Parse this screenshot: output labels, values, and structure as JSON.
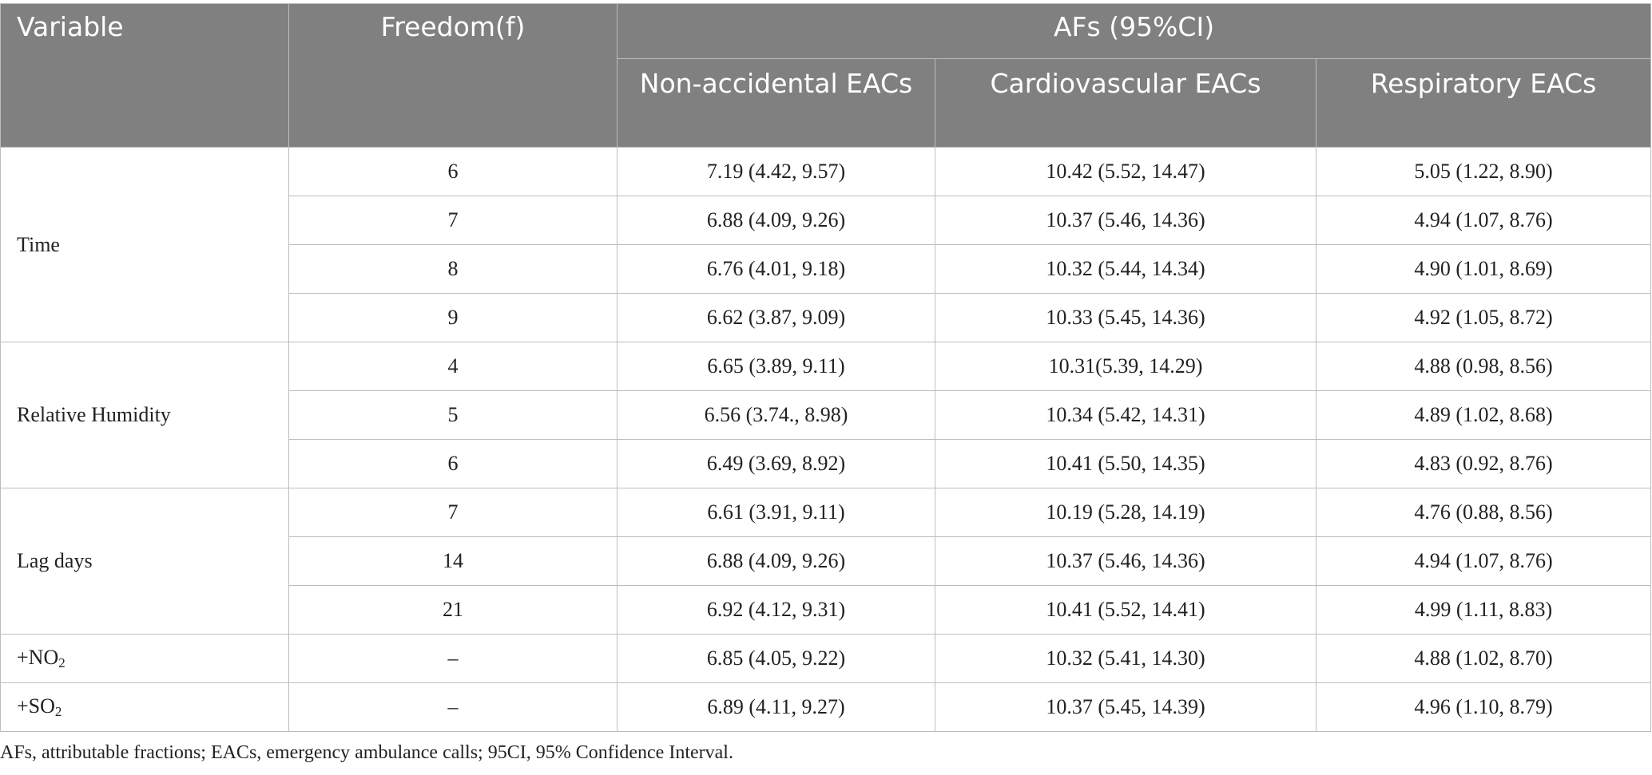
{
  "header": {
    "variable": "Variable",
    "freedom": "Freedom(f)",
    "afs": "AFs (95%CI)",
    "non_accidental": "Non-accidental EACs",
    "cardiovascular": "Cardiovascular EACs",
    "respiratory": "Respiratory EACs"
  },
  "rows": [
    {
      "variable": "Time",
      "freedom": "6",
      "non_accidental": "7.19 (4.42, 9.57)",
      "cardiovascular": "10.42 (5.52, 14.47)",
      "respiratory": "5.05 (1.22, 8.90)"
    },
    {
      "freedom": "7",
      "non_accidental": "6.88 (4.09, 9.26)",
      "cardiovascular": "10.37 (5.46, 14.36)",
      "respiratory": "4.94 (1.07, 8.76)"
    },
    {
      "freedom": "8",
      "non_accidental": "6.76 (4.01, 9.18)",
      "cardiovascular": "10.32 (5.44, 14.34)",
      "respiratory": "4.90 (1.01, 8.69)"
    },
    {
      "freedom": "9",
      "non_accidental": "6.62 (3.87, 9.09)",
      "cardiovascular": "10.33 (5.45, 14.36)",
      "respiratory": "4.92 (1.05, 8.72)"
    },
    {
      "variable": "Relative Humidity",
      "freedom": "4",
      "non_accidental": "6.65 (3.89, 9.11)",
      "cardiovascular": "10.31(5.39, 14.29)",
      "respiratory": "4.88 (0.98, 8.56)"
    },
    {
      "freedom": "5",
      "non_accidental": "6.56 (3.74., 8.98)",
      "cardiovascular": "10.34 (5.42, 14.31)",
      "respiratory": "4.89 (1.02, 8.68)"
    },
    {
      "freedom": "6",
      "non_accidental": "6.49 (3.69, 8.92)",
      "cardiovascular": "10.41 (5.50, 14.35)",
      "respiratory": "4.83 (0.92, 8.76)"
    },
    {
      "variable": "Lag days",
      "freedom": "7",
      "non_accidental": "6.61 (3.91, 9.11)",
      "cardiovascular": "10.19 (5.28, 14.19)",
      "respiratory": "4.76 (0.88, 8.56)"
    },
    {
      "freedom": "14",
      "non_accidental": "6.88 (4.09, 9.26)",
      "cardiovascular": "10.37 (5.46, 14.36)",
      "respiratory": "4.94 (1.07, 8.76)"
    },
    {
      "freedom": "21",
      "non_accidental": "6.92 (4.12, 9.31)",
      "cardiovascular": "10.41 (5.52, 14.41)",
      "respiratory": "4.99 (1.11, 8.83)"
    },
    {
      "variable_prefix": "+NO",
      "variable_sub": "2",
      "freedom": "–",
      "non_accidental": "6.85 (4.05, 9.22)",
      "cardiovascular": "10.32 (5.41, 14.30)",
      "respiratory": "4.88 (1.02, 8.70)"
    },
    {
      "variable_prefix": "+SO",
      "variable_sub": "2",
      "freedom": "–",
      "non_accidental": "6.89 (4.11, 9.27)",
      "cardiovascular": "10.37 (5.45, 14.39)",
      "respiratory": "4.96 (1.10, 8.79)"
    }
  ],
  "footnote": "AFs, attributable fractions; EACs, emergency ambulance calls; 95CI, 95% Confidence Interval."
}
